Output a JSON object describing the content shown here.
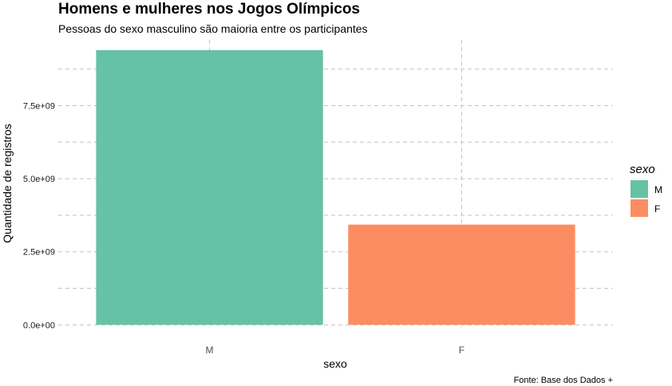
{
  "chart_data": {
    "type": "bar",
    "title": "Homens e mulheres nos Jogos Olímpicos",
    "subtitle": "Pessoas do sexo masculino são maioria entre os participantes",
    "xlabel": "sexo",
    "ylabel": "Quantidade de registros",
    "caption": "Fonte: Base dos Dados +",
    "categories": [
      "M",
      "F"
    ],
    "values": [
      9400000000,
      3430000000
    ],
    "colors": [
      "#66c2a5",
      "#fc8d62"
    ],
    "ylim": [
      -100000000,
      9750000000
    ],
    "y_ticks": [
      0,
      2500000000,
      5000000000,
      7500000000
    ],
    "y_tick_labels": [
      "0.0e+00",
      "2.5e+09",
      "5.0e+09",
      "7.5e+09"
    ],
    "grid": true,
    "legend": {
      "title": "sexo",
      "position": "right",
      "items": [
        {
          "label": "M",
          "color": "#66c2a5"
        },
        {
          "label": "F",
          "color": "#fc8d62"
        }
      ]
    }
  }
}
